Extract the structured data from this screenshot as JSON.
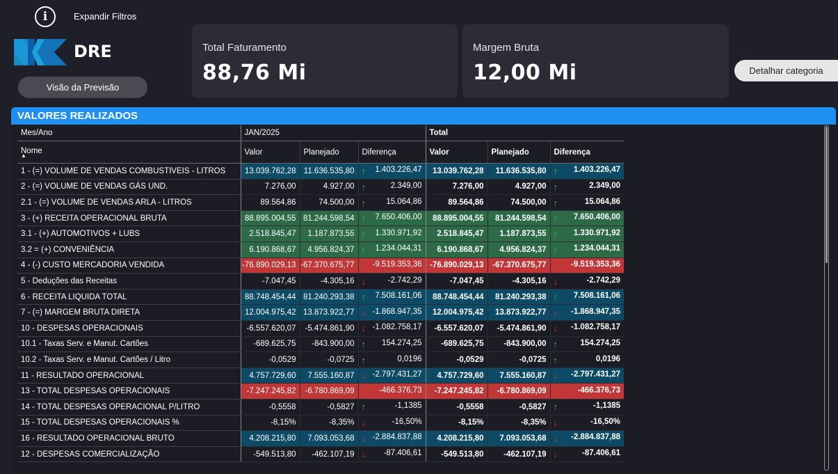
{
  "header": {
    "expand_label": "Expandir Filtros",
    "logo_text": "DRE",
    "preview_button": "Visão da Previsão",
    "detail_button": "Detalhar categoria"
  },
  "kpis": [
    {
      "label": "Total Faturamento",
      "value": "88,76 Mi"
    },
    {
      "label": "Margem Bruta",
      "value": "12,00 Mi"
    }
  ],
  "colors": {
    "accent": "#1f8ff0",
    "kpi_bg": "#2b2c36",
    "cell_blue": "#0d4a66",
    "cell_green": "#2d6b47",
    "cell_red": "#c13636",
    "arrow_up": "#3fb56a",
    "arrow_down": "#e03232"
  },
  "table": {
    "title": "VALORES REALIZADOS",
    "period_header": "Mes/Ano",
    "period": "JAN/2025",
    "total_header": "Total",
    "name_header": "Nome",
    "columns": {
      "valor": "Valor",
      "planejado": "Planejado",
      "diferenca": "Diferença"
    },
    "rows": [
      {
        "name": "1 - (=) VOLUME DE VENDAS COMBUSTIVEIS - LITROS",
        "valor": "13.039.762,28",
        "planejado": "11.636.535,80",
        "arrow": "up",
        "diferenca": "1.403.226,47",
        "t_valor": "13.039.762,28",
        "t_planejado": "11.636.535,80",
        "t_diferenca": "1.403.226,47",
        "hl": "blue"
      },
      {
        "name": "2 - (=) VOLUME DE VENDAS GÁS UND.",
        "valor": "7.276,00",
        "planejado": "4.927,00",
        "arrow": "up",
        "diferenca": "2.349,00",
        "t_valor": "7.276,00",
        "t_planejado": "4.927,00",
        "t_diferenca": "2.349,00",
        "hl": ""
      },
      {
        "name": "2.1 - (=) VOLUME DE VENDAS ARLA - LITROS",
        "valor": "89.564,86",
        "planejado": "74.500,00",
        "arrow": "up",
        "diferenca": "15.064,86",
        "t_valor": "89.564,86",
        "t_planejado": "74.500,00",
        "t_diferenca": "15.064,86",
        "hl": ""
      },
      {
        "name": "3 - (+) RECEITA OPERACIONAL BRUTA",
        "valor": "88.895.004,55",
        "planejado": "81.244.598,54",
        "arrow": "up",
        "diferenca": "7.650.406,00",
        "t_valor": "88.895.004,55",
        "t_planejado": "81.244.598,54",
        "t_diferenca": "7.650.406,00",
        "hl": "green"
      },
      {
        "name": "3.1 - (+) AUTOMOTIVOS + LUBS",
        "valor": "2.518.845,47",
        "planejado": "1.187.873,55",
        "arrow": "up",
        "diferenca": "1.330.971,92",
        "t_valor": "2.518.845,47",
        "t_planejado": "1.187.873,55",
        "t_diferenca": "1.330.971,92",
        "hl": "green"
      },
      {
        "name": "3.2 = (+) CONVENIÊNCIA",
        "valor": "6.190.868,67",
        "planejado": "4.956.824,37",
        "arrow": "up",
        "diferenca": "1.234.044,31",
        "t_valor": "6.190.868,67",
        "t_planejado": "4.956.824,37",
        "t_diferenca": "1.234.044,31",
        "hl": "green"
      },
      {
        "name": "4 - (-) CUSTO MERCADORIA VENDIDA",
        "valor": "-76.890.029,13",
        "planejado": "-67.370.675,77",
        "arrow": "down",
        "diferenca": "-9.519.353,36",
        "t_valor": "-76.890.029,13",
        "t_planejado": "-67.370.675,77",
        "t_diferenca": "-9.519.353,36",
        "hl": "red"
      },
      {
        "name": "5 - Deduções das Receitas",
        "valor": "-7.047,45",
        "planejado": "-4.305,16",
        "arrow": "down",
        "diferenca": "-2.742,29",
        "t_valor": "-7.047,45",
        "t_planejado": "-4.305,16",
        "t_diferenca": "-2.742,29",
        "hl": ""
      },
      {
        "name": "6 - RECEITA LIQUIDA TOTAL",
        "valor": "88.748.454,44",
        "planejado": "81.240.293,38",
        "arrow": "up",
        "diferenca": "7.508.161,06",
        "t_valor": "88.748.454,44",
        "t_planejado": "81.240.293,38",
        "t_diferenca": "7.508.161,06",
        "hl": "blue"
      },
      {
        "name": "7 - (=) MARGEM BRUTA DIRETA",
        "valor": "12.004.975,42",
        "planejado": "13.873.922,77",
        "arrow": "down",
        "diferenca": "-1.868.947,35",
        "t_valor": "12.004.975,42",
        "t_planejado": "13.873.922,77",
        "t_diferenca": "-1.868.947,35",
        "hl": "blue"
      },
      {
        "name": "10 - DESPESAS OPERACIONAIS",
        "valor": "-6.557.620,07",
        "planejado": "-5.474.861,90",
        "arrow": "down",
        "diferenca": "-1.082.758,17",
        "t_valor": "-6.557.620,07",
        "t_planejado": "-5.474.861,90",
        "t_diferenca": "-1.082.758,17",
        "hl": ""
      },
      {
        "name": "10.1 - Taxas Serv. e Manut. Cartões",
        "valor": "-689.625,75",
        "planejado": "-843.900,00",
        "arrow": "up",
        "diferenca": "154.274,25",
        "t_valor": "-689.625,75",
        "t_planejado": "-843.900,00",
        "t_diferenca": "154.274,25",
        "hl": ""
      },
      {
        "name": "10.2 - Taxas Serv. e Manut. Cartões / Litro",
        "valor": "-0,0529",
        "planejado": "-0,0725",
        "arrow": "up",
        "diferenca": "0,0196",
        "t_valor": "-0,0529",
        "t_planejado": "-0,0725",
        "t_diferenca": "0,0196",
        "hl": ""
      },
      {
        "name": "11 - RESULTADO OPERACIONAL",
        "valor": "4.757.729,60",
        "planejado": "7.555.160,87",
        "arrow": "down",
        "diferenca": "-2.797.431,27",
        "t_valor": "4.757.729,60",
        "t_planejado": "7.555.160,87",
        "t_diferenca": "-2.797.431,27",
        "hl": "blue"
      },
      {
        "name": "13 - TOTAL DESPESAS OPERACIONAIS",
        "valor": "-7.247.245,82",
        "planejado": "-6.780.869,09",
        "arrow": "down",
        "diferenca": "-466.376,73",
        "t_valor": "-7.247.245,82",
        "t_planejado": "-6.780.869,09",
        "t_diferenca": "-466.376,73",
        "hl": "red"
      },
      {
        "name": "14 - TOTAL DESPESAS OPERACIONAL P/LITRO",
        "valor": "-0,5558",
        "planejado": "-0,5827",
        "arrow": "up",
        "diferenca": "-1,1385",
        "t_valor": "-0,5558",
        "t_planejado": "-0,5827",
        "t_diferenca": "-1,1385",
        "hl": ""
      },
      {
        "name": "15 - TOTAL DESPESAS OPERACIONAIS %",
        "valor": "-8,15%",
        "planejado": "-8,35%",
        "arrow": "down",
        "diferenca": "-16,50%",
        "t_valor": "-8,15%",
        "t_planejado": "-8,35%",
        "t_diferenca": "-16,50%",
        "hl": ""
      },
      {
        "name": "16 - RESULTADO OPERACIONAL BRUTO",
        "valor": "4.208.215,80",
        "planejado": "7.093.053,68",
        "arrow": "down",
        "diferenca": "-2.884.837,88",
        "t_valor": "4.208.215,80",
        "t_planejado": "7.093.053,68",
        "t_diferenca": "-2.884.837,88",
        "hl": "blue"
      },
      {
        "name": "12 - DESPESAS COMERCIALIZAÇÃO",
        "valor": "-549.513,80",
        "planejado": "-462.107,19",
        "arrow": "down",
        "diferenca": "-87.406,61",
        "t_valor": "-549.513,80",
        "t_planejado": "-462.107,19",
        "t_diferenca": "-87.406,61",
        "hl": ""
      }
    ]
  }
}
